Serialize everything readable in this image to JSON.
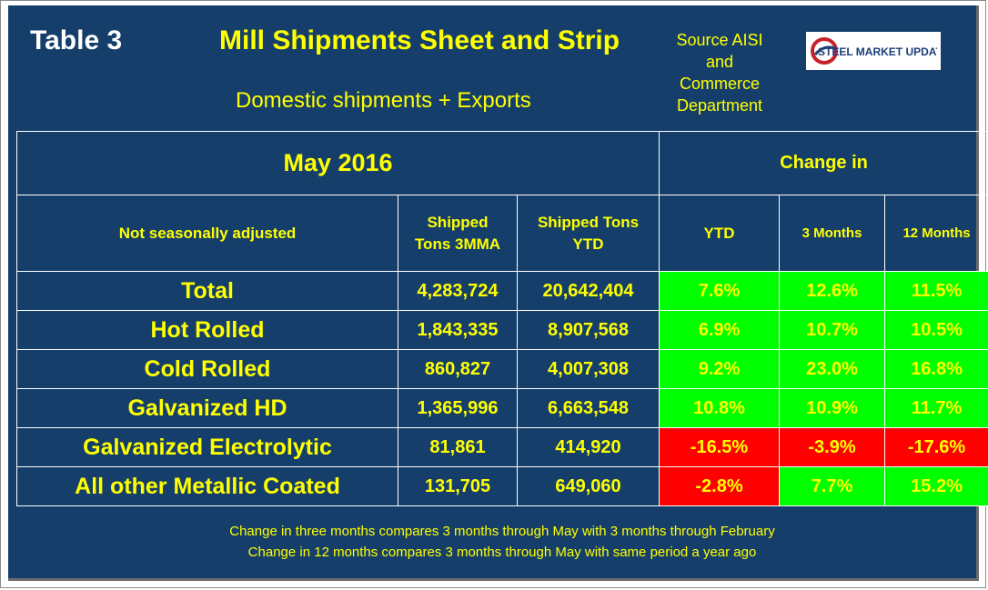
{
  "header": {
    "table_number": "Table 3",
    "title": "Mill Shipments Sheet and Strip",
    "subtitle": "Domestic shipments + Exports",
    "source_lines": [
      "Source AISI",
      "and",
      "Commerce",
      "Department"
    ],
    "logo_text": "STEEL MARKET UPDATE"
  },
  "chart_data": {
    "type": "table",
    "period": "May 2016",
    "group_header": "Change in",
    "row_header": "Not seasonally adjusted",
    "columns": [
      "Shipped Tons 3MMA",
      "Shipped Tons YTD",
      "YTD",
      "3 Months",
      "12 Months"
    ],
    "columns_display": {
      "c0": [
        "Shipped",
        "Tons 3MMA"
      ],
      "c1": [
        "Shipped Tons",
        "YTD"
      ],
      "c2": "YTD",
      "c3": "3 Months",
      "c4": "12 Months"
    },
    "rows": [
      {
        "label": "Total",
        "mma": "4,283,724",
        "ytd_tons": "20,642,404",
        "ytd_chg": "7.6%",
        "m3": "12.6%",
        "m12": "11.5%"
      },
      {
        "label": "Hot Rolled",
        "mma": "1,843,335",
        "ytd_tons": "8,907,568",
        "ytd_chg": "6.9%",
        "m3": "10.7%",
        "m12": "10.5%"
      },
      {
        "label": "Cold Rolled",
        "mma": "860,827",
        "ytd_tons": "4,007,308",
        "ytd_chg": "9.2%",
        "m3": "23.0%",
        "m12": "16.8%"
      },
      {
        "label": "Galvanized HD",
        "mma": "1,365,996",
        "ytd_tons": "6,663,548",
        "ytd_chg": "10.8%",
        "m3": "10.9%",
        "m12": "11.7%"
      },
      {
        "label": "Galvanized Electrolytic",
        "mma": "81,861",
        "ytd_tons": "414,920",
        "ytd_chg": "-16.5%",
        "m3": "-3.9%",
        "m12": "-17.6%"
      },
      {
        "label": "All other Metallic Coated",
        "mma": "131,705",
        "ytd_tons": "649,060",
        "ytd_chg": "-2.8%",
        "m3": "7.7%",
        "m12": "15.2%"
      }
    ],
    "colors": {
      "positive": "#00ff00",
      "negative": "#ff0000",
      "background": "#153f6a",
      "text": "#ffff00"
    }
  },
  "footer": {
    "line1": "Change in three months compares 3 months through May with 3 months through February",
    "line2": "Change in 12 months compares 3 months through May with same period a year ago"
  }
}
